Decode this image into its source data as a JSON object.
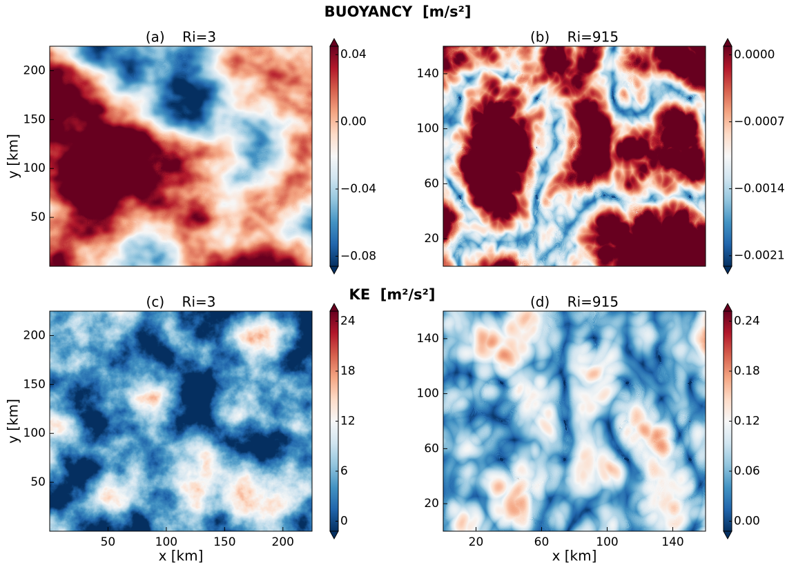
{
  "headings": [
    "BUOYANCY  [m/s²]",
    "KE  [m²/s²]"
  ],
  "chart_data": [
    {
      "type": "heatmap",
      "title": "(a)    Ri=3",
      "ylabel": "y [km]",
      "ylim": [
        0,
        225
      ],
      "yticks": [
        50,
        100,
        150,
        200
      ],
      "clim": [
        -0.086,
        0.045
      ],
      "cticks": [
        {
          "value": -0.08,
          "label": "−0.08"
        },
        {
          "value": -0.04,
          "label": "−0.04"
        },
        {
          "value": 0,
          "label": "0.00"
        },
        0.04
      ],
      "colormap": [
        "#053061",
        "#2166ac",
        "#4393c3",
        "#92c5de",
        "#d1e5f0",
        "#f7f7f7",
        "#fddbc7",
        "#f4a582",
        "#d6604d",
        "#b2182b",
        "#67001f"
      ]
    },
    {
      "type": "heatmap",
      "title": "(b)    Ri=915",
      "ylim": [
        0,
        160
      ],
      "yticks": [
        20,
        60,
        100,
        140
      ],
      "clim": [
        -0.00221,
        9e-05
      ],
      "cticks": [
        {
          "value": -0.0021,
          "label": "−0.0021"
        },
        {
          "value": -0.0014,
          "label": "−0.0014"
        },
        {
          "value": -0.0007,
          "label": "−0.0007"
        },
        {
          "value": 0,
          "label": "0.0000"
        }
      ],
      "colormap": [
        "#053061",
        "#2166ac",
        "#4393c3",
        "#92c5de",
        "#d1e5f0",
        "#f7f7f7",
        "#fddbc7",
        "#f4a582",
        "#d6604d",
        "#b2182b",
        "#67001f"
      ]
    },
    {
      "type": "heatmap",
      "title": "(c)    Ri=3",
      "xlabel": "x [km]",
      "ylabel": "y [km]",
      "xlim": [
        0,
        225
      ],
      "xticks": [
        50,
        100,
        150,
        200
      ],
      "ylim": [
        0,
        225
      ],
      "yticks": [
        50,
        100,
        150,
        200
      ],
      "clim": [
        -1.2,
        25.2
      ],
      "cticks": [
        0,
        6,
        12,
        18,
        24
      ],
      "colormap": [
        "#053061",
        "#2166ac",
        "#4393c3",
        "#92c5de",
        "#d1e5f0",
        "#f7f7f7",
        "#fddbc7",
        "#f4a582",
        "#d6604d",
        "#b2182b",
        "#67001f"
      ]
    },
    {
      "type": "heatmap",
      "title": "(d)    Ri=915",
      "xlabel": "x [km]",
      "xlim": [
        0,
        160
      ],
      "xticks": [
        20,
        60,
        100,
        140
      ],
      "ylim": [
        0,
        160
      ],
      "yticks": [
        20,
        60,
        100,
        140
      ],
      "clim": [
        -0.012,
        0.252
      ],
      "cticks": [
        {
          "value": 0,
          "label": "0.00"
        },
        0.06,
        0.12,
        0.18,
        0.24
      ],
      "colormap": [
        "#053061",
        "#2166ac",
        "#4393c3",
        "#92c5de",
        "#d1e5f0",
        "#f7f7f7",
        "#fddbc7",
        "#f4a582",
        "#d6604d",
        "#b2182b",
        "#67001f"
      ]
    }
  ]
}
